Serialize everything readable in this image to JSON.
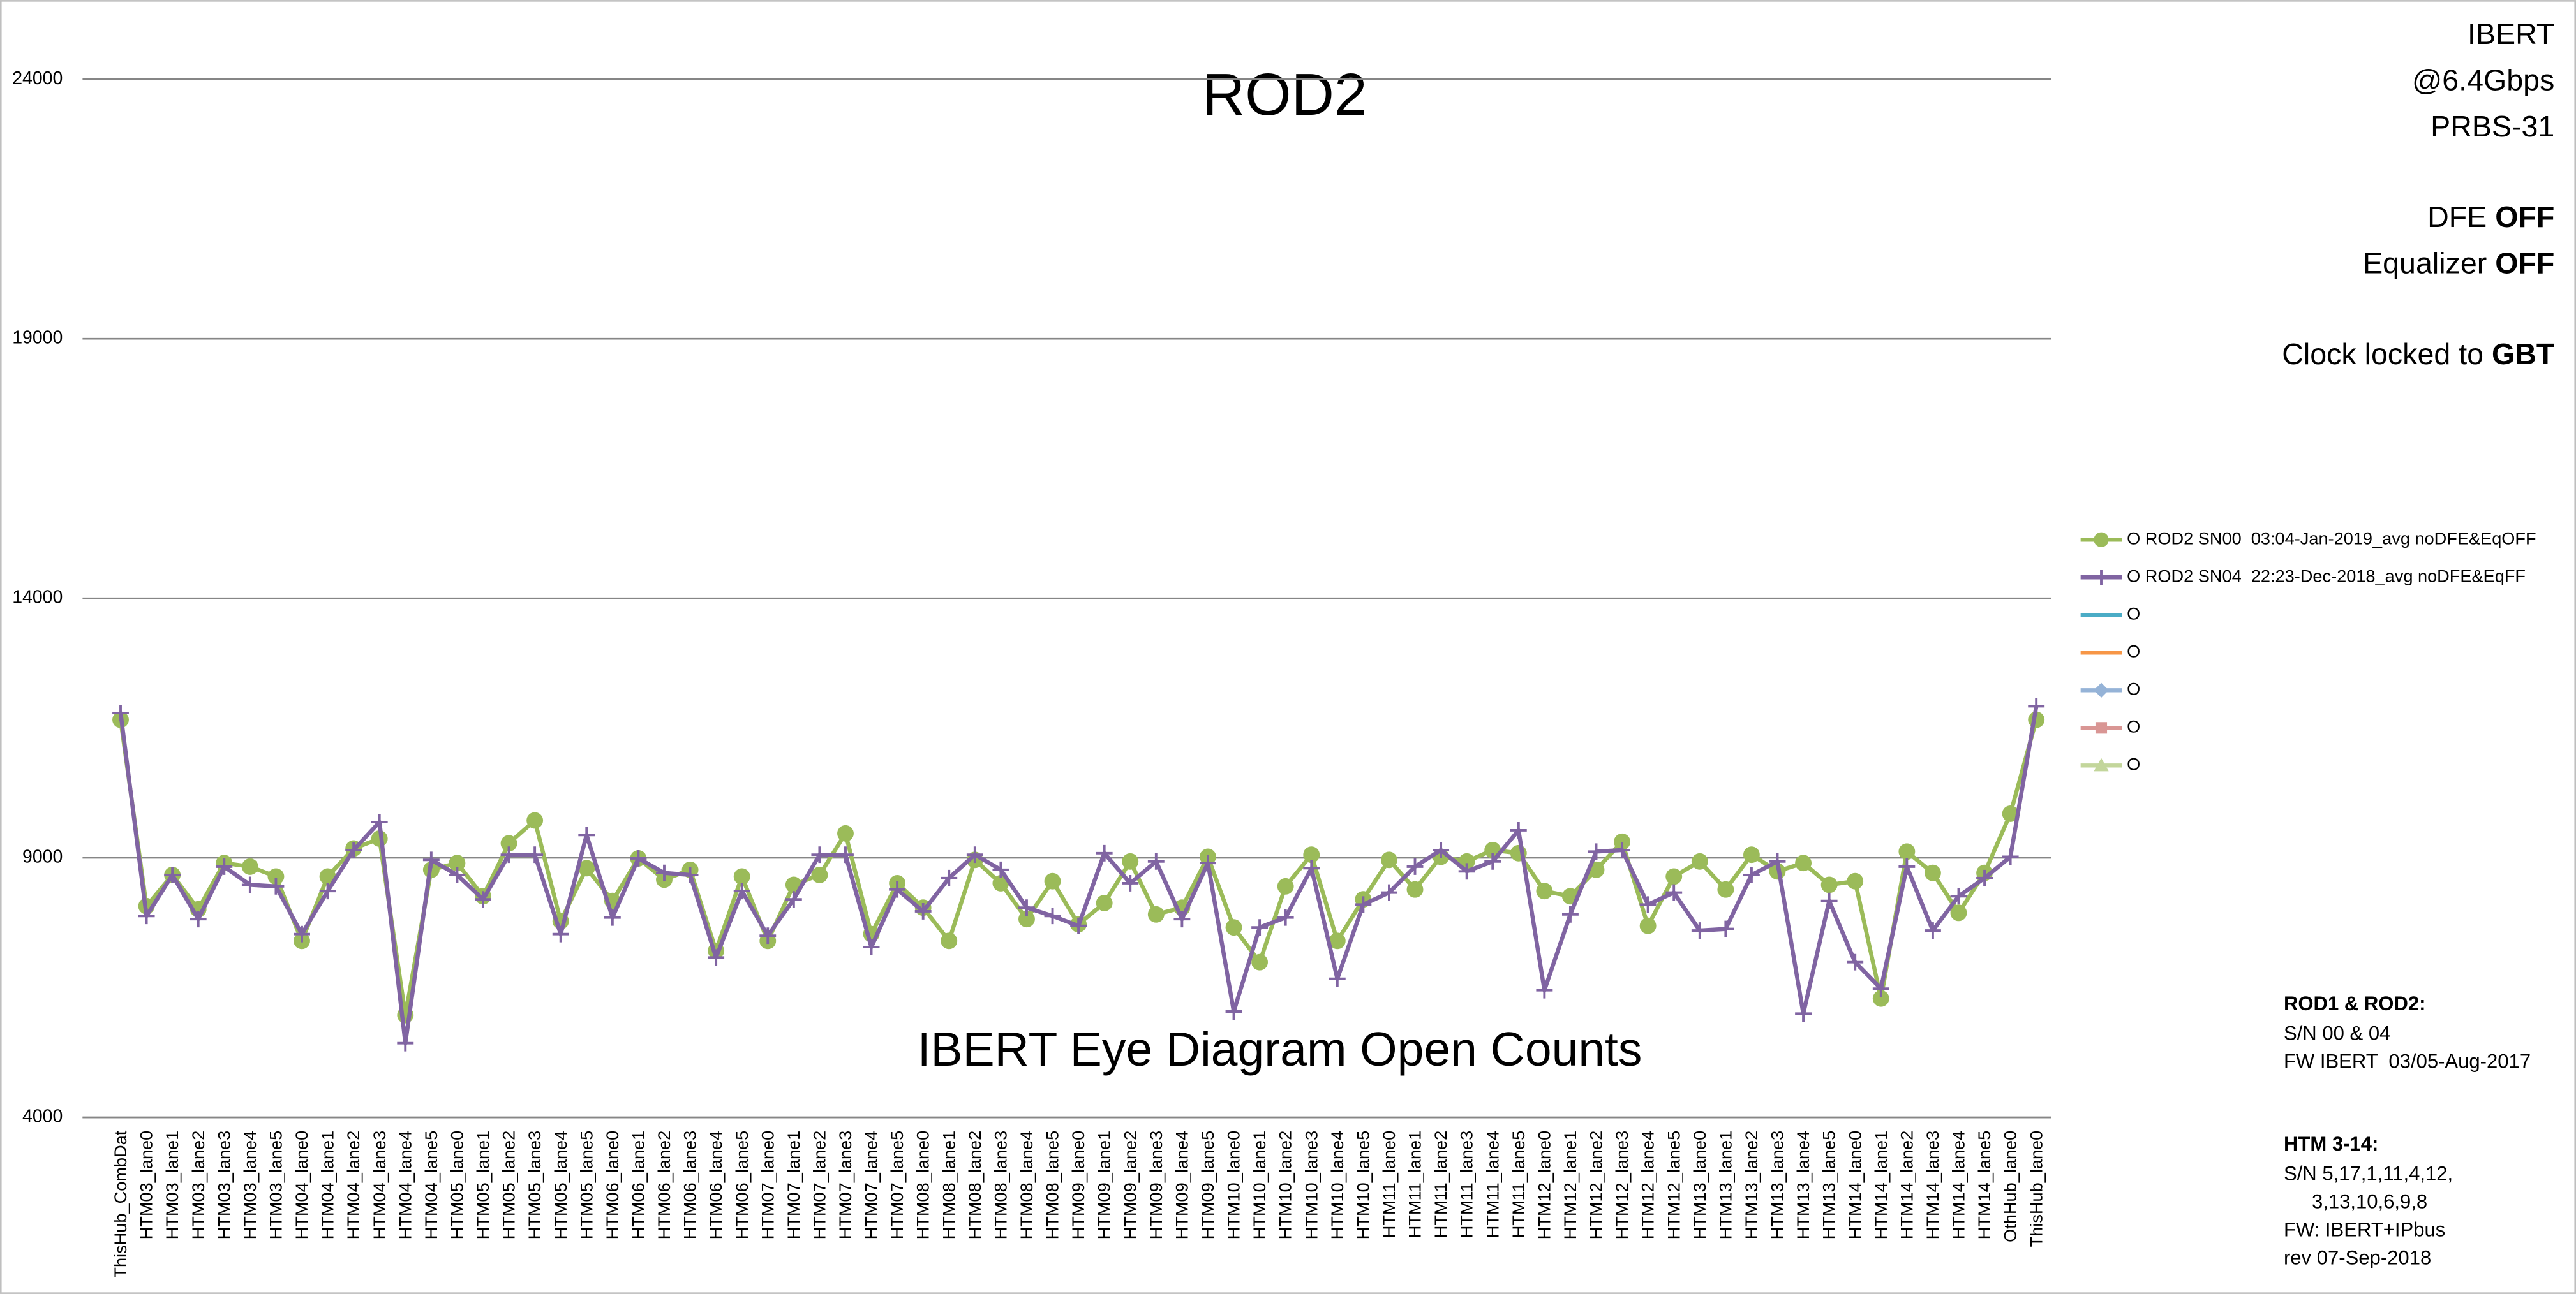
{
  "chart_data": {
    "type": "line",
    "title": "ROD2",
    "subtitle": "IBERT Eye Diagram Open Counts",
    "categories": [
      "ThisHub_CombDat",
      "HTM03_lane0",
      "HTM03_lane1",
      "HTM03_lane2",
      "HTM03_lane3",
      "HTM03_lane4",
      "HTM03_lane5",
      "HTM04_lane0",
      "HTM04_lane1",
      "HTM04_lane2",
      "HTM04_lane3",
      "HTM04_lane4",
      "HTM04_lane5",
      "HTM05_lane0",
      "HTM05_lane1",
      "HTM05_lane2",
      "HTM05_lane3",
      "HTM05_lane4",
      "HTM05_lane5",
      "HTM06_lane0",
      "HTM06_lane1",
      "HTM06_lane2",
      "HTM06_lane3",
      "HTM06_lane4",
      "HTM06_lane5",
      "HTM07_lane0",
      "HTM07_lane1",
      "HTM07_lane2",
      "HTM07_lane3",
      "HTM07_lane4",
      "HTM07_lane5",
      "HTM08_lane0",
      "HTM08_lane1",
      "HTM08_lane2",
      "HTM08_lane3",
      "HTM08_lane4",
      "HTM08_lane5",
      "HTM09_lane0",
      "HTM09_lane1",
      "HTM09_lane2",
      "HTM09_lane3",
      "HTM09_lane4",
      "HTM09_lane5",
      "HTM10_lane0",
      "HTM10_lane1",
      "HTM10_lane2",
      "HTM10_lane3",
      "HTM10_lane4",
      "HTM10_lane5",
      "HTM11_lane0",
      "HTM11_lane1",
      "HTM11_lane2",
      "HTM11_lane3",
      "HTM11_lane4",
      "HTM11_lane5",
      "HTM12_lane0",
      "HTM12_lane1",
      "HTM12_lane2",
      "HTM12_lane3",
      "HTM12_lane4",
      "HTM12_lane5",
      "HTM13_lane0",
      "HTM13_lane1",
      "HTM13_lane2",
      "HTM13_lane3",
      "HTM13_lane4",
      "HTM13_lane5",
      "HTM14_lane0",
      "HTM14_lane1",
      "HTM14_lane2",
      "HTM14_lane3",
      "HTM14_lane4",
      "HTM14_lane5",
      "OthHub_lane0",
      "ThisHub_lane0"
    ],
    "series": [
      {
        "name": "O ROD2 SN00  03:04-Jan-2019_avg noDFE&EqOFF",
        "color": "#9bbb59",
        "marker": "circle",
        "values": [
          11660,
          8070,
          8670,
          8010,
          8900,
          8830,
          8640,
          7400,
          8640,
          9180,
          9370,
          5970,
          8770,
          8900,
          8260,
          9280,
          9720,
          7780,
          8800,
          8170,
          8990,
          8580,
          8770,
          7210,
          8640,
          7400,
          8480,
          8670,
          9470,
          7530,
          8510,
          8040,
          7400,
          8960,
          8510,
          7820,
          8550,
          7720,
          8130,
          8930,
          7910,
          8040,
          9020,
          7660,
          6990,
          8450,
          9060,
          7400,
          8200,
          8960,
          8390,
          9020,
          8930,
          9150,
          9090,
          8360,
          8260,
          8770,
          9310,
          7690,
          8640,
          8930,
          8390,
          9060,
          8740,
          8900,
          8480,
          8550,
          6290,
          9120,
          8710,
          7940,
          8710,
          9850,
          11660
        ]
      },
      {
        "name": "O ROD2 SN04  22:23-Dec-2018_avg noDFE&EqFF",
        "color": "#8064a2",
        "marker": "plus",
        "values": [
          11790,
          7880,
          8670,
          7820,
          8830,
          8480,
          8450,
          7530,
          8360,
          9150,
          9690,
          5430,
          8960,
          8670,
          8200,
          9060,
          9060,
          7530,
          9440,
          7850,
          8990,
          8710,
          8670,
          7080,
          8360,
          7500,
          8200,
          9060,
          9060,
          7280,
          8390,
          7970,
          8610,
          9060,
          8770,
          8040,
          7880,
          7690,
          9090,
          8510,
          8930,
          7820,
          8900,
          6040,
          7660,
          7850,
          8800,
          6670,
          8100,
          8330,
          8830,
          9150,
          8740,
          8930,
          9530,
          6450,
          7910,
          9120,
          9150,
          8100,
          8330,
          7600,
          7630,
          8670,
          8930,
          6000,
          8170,
          6990,
          6480,
          8830,
          7600,
          8260,
          8610,
          9020,
          11920
        ]
      },
      {
        "name": "O",
        "color": "#4bacc6",
        "marker": "none",
        "values": [
          null,
          null,
          null,
          null,
          null,
          null,
          null,
          null,
          null,
          null,
          null,
          null,
          null,
          null,
          null,
          null,
          null,
          null,
          null,
          null,
          null,
          null,
          null,
          null,
          null,
          null,
          null,
          null,
          null,
          null,
          null,
          null,
          null,
          null,
          null,
          null,
          null,
          null,
          null,
          null,
          null,
          null,
          null,
          null,
          null,
          null,
          null,
          null,
          null,
          null,
          null,
          null,
          null,
          null,
          null,
          null,
          null,
          null,
          null,
          null,
          null,
          null,
          null,
          null,
          null,
          null,
          null,
          null,
          null,
          null,
          null,
          null,
          null,
          null,
          null
        ]
      },
      {
        "name": "O",
        "color": "#f79646",
        "marker": "none",
        "values": [
          null,
          null,
          null,
          null,
          null,
          null,
          null,
          null,
          null,
          null,
          null,
          null,
          null,
          null,
          null,
          null,
          null,
          null,
          null,
          null,
          null,
          null,
          null,
          null,
          null,
          null,
          null,
          null,
          null,
          null,
          null,
          null,
          null,
          null,
          null,
          null,
          null,
          null,
          null,
          null,
          null,
          null,
          null,
          null,
          null,
          null,
          null,
          null,
          null,
          null,
          null,
          null,
          null,
          null,
          null,
          null,
          null,
          null,
          null,
          null,
          null,
          null,
          null,
          null,
          null,
          null,
          null,
          null,
          null,
          null,
          null,
          null,
          null,
          null,
          null
        ]
      },
      {
        "name": "O",
        "color": "#95b3d7",
        "marker": "diamond",
        "values": [
          null,
          null,
          null,
          null,
          null,
          null,
          null,
          null,
          null,
          null,
          null,
          null,
          null,
          null,
          null,
          null,
          null,
          null,
          null,
          null,
          null,
          null,
          null,
          null,
          null,
          null,
          null,
          null,
          null,
          null,
          null,
          null,
          null,
          null,
          null,
          null,
          null,
          null,
          null,
          null,
          null,
          null,
          null,
          null,
          null,
          null,
          null,
          null,
          null,
          null,
          null,
          null,
          null,
          null,
          null,
          null,
          null,
          null,
          null,
          null,
          null,
          null,
          null,
          null,
          null,
          null,
          null,
          null,
          null,
          null,
          null,
          null,
          null,
          null,
          null
        ]
      },
      {
        "name": "O",
        "color": "#d99694",
        "marker": "square",
        "values": [
          null,
          null,
          null,
          null,
          null,
          null,
          null,
          null,
          null,
          null,
          null,
          null,
          null,
          null,
          null,
          null,
          null,
          null,
          null,
          null,
          null,
          null,
          null,
          null,
          null,
          null,
          null,
          null,
          null,
          null,
          null,
          null,
          null,
          null,
          null,
          null,
          null,
          null,
          null,
          null,
          null,
          null,
          null,
          null,
          null,
          null,
          null,
          null,
          null,
          null,
          null,
          null,
          null,
          null,
          null,
          null,
          null,
          null,
          null,
          null,
          null,
          null,
          null,
          null,
          null,
          null,
          null,
          null,
          null,
          null,
          null,
          null,
          null,
          null,
          null
        ]
      },
      {
        "name": "O",
        "color": "#c3d69b",
        "marker": "triangle",
        "values": [
          null,
          null,
          null,
          null,
          null,
          null,
          null,
          null,
          null,
          null,
          null,
          null,
          null,
          null,
          null,
          null,
          null,
          null,
          null,
          null,
          null,
          null,
          null,
          null,
          null,
          null,
          null,
          null,
          null,
          null,
          null,
          null,
          null,
          null,
          null,
          null,
          null,
          null,
          null,
          null,
          null,
          null,
          null,
          null,
          null,
          null,
          null,
          null,
          null,
          null,
          null,
          null,
          null,
          null,
          null,
          null,
          null,
          null,
          null,
          null,
          null,
          null,
          null,
          null,
          null,
          null,
          null,
          null,
          null,
          null,
          null,
          null,
          null,
          null,
          null
        ]
      }
    ],
    "ylim": [
      4000,
      25000
    ],
    "yticks": [
      4000,
      9000,
      14000,
      19000,
      24000
    ],
    "grid": true,
    "legend": "right",
    "right_notes": [
      [
        {
          "text": "IBERT"
        }
      ],
      [
        {
          "text": "@6.4Gbps"
        }
      ],
      [
        {
          "text": "PRBS-31"
        }
      ],
      [
        {
          "text": "DFE "
        },
        {
          "text": "OFF",
          "bold": true
        }
      ],
      [
        {
          "text": "Equalizer "
        },
        {
          "text": "OFF",
          "bold": true
        }
      ],
      [
        {
          "text": "Clock locked to "
        },
        {
          "text": "GBT",
          "bold": true
        }
      ]
    ],
    "bottom_notes": [
      [
        {
          "text": "ROD1 & ROD2:",
          "bold": true
        }
      ],
      [
        {
          "text": "S/N 00 & 04"
        }
      ],
      [
        {
          "text": "FW IBERT  03/05-Aug-2017"
        }
      ],
      [
        {
          "text": "HTM 3-14:",
          "bold": true
        }
      ],
      [
        {
          "text": "S/N 5,17,1,11,4,12,"
        }
      ],
      [
        {
          "text": "3,13,10,6,9,8"
        }
      ],
      [
        {
          "text": "FW: IBERT+IPbus"
        }
      ],
      [
        {
          "text": "rev 07-Sep-2018"
        }
      ]
    ]
  }
}
